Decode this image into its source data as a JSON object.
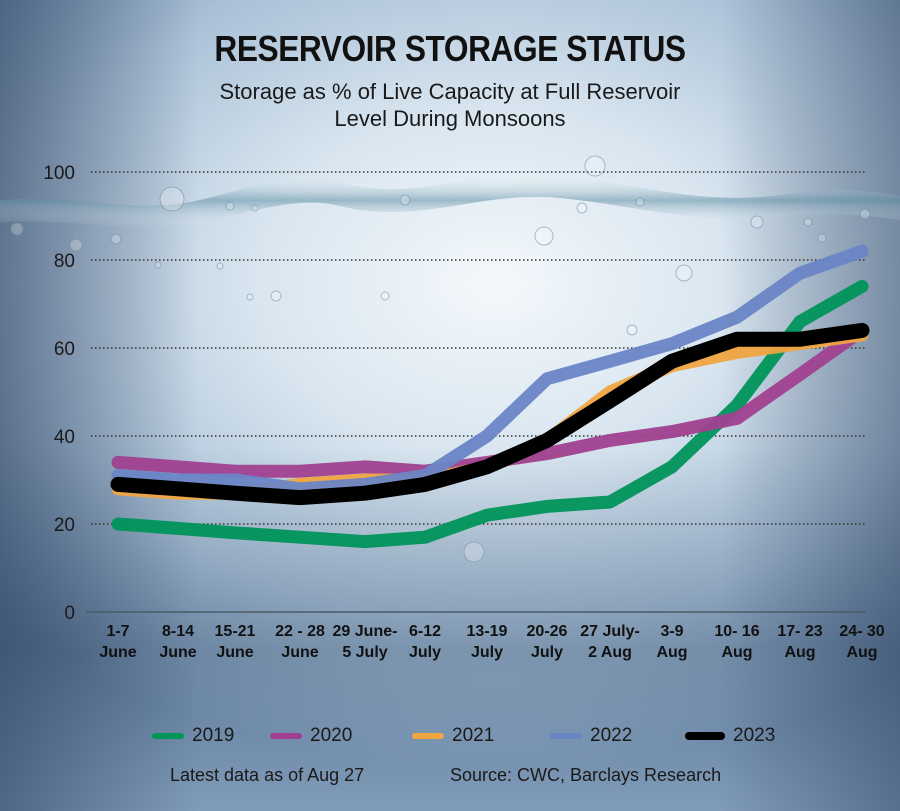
{
  "header": {
    "title": "RESERVOIR STORAGE STATUS",
    "subtitle_line1": "Storage as % of Live Capacity at Full Reservoir",
    "subtitle_line2": "Level During Monsoons"
  },
  "chart_data": {
    "type": "line",
    "title": "RESERVOIR STORAGE STATUS",
    "subtitle": "Storage as % of Live Capacity at Full Reservoir Level During Monsoons",
    "xlabel": "",
    "ylabel": "",
    "ylim": [
      0,
      100
    ],
    "yticks": [
      0,
      20,
      40,
      60,
      80,
      100
    ],
    "grid": true,
    "legend_position": "bottom",
    "categories": [
      [
        "1-7",
        "June"
      ],
      [
        "8-14",
        "June"
      ],
      [
        "15-21",
        "June"
      ],
      [
        "22 - 28",
        "June"
      ],
      [
        "29 June-",
        "5 July"
      ],
      [
        "6-12",
        "July"
      ],
      [
        "13-19",
        "July"
      ],
      [
        "20-26",
        "July"
      ],
      [
        "27 July-",
        "2 Aug"
      ],
      [
        "3-9",
        "Aug"
      ],
      [
        "10- 16",
        "Aug"
      ],
      [
        "17- 23",
        "Aug"
      ],
      [
        "24- 30",
        "Aug"
      ]
    ],
    "series": [
      {
        "name": "2019",
        "color": "#00945a",
        "values": [
          20,
          19,
          18,
          17,
          16,
          17,
          22,
          24,
          25,
          33,
          47,
          66,
          74
        ]
      },
      {
        "name": "2020",
        "color": "#a0408f",
        "values": [
          34,
          33,
          32,
          32,
          33,
          32,
          34,
          36,
          39,
          41,
          44,
          54,
          64
        ]
      },
      {
        "name": "2021",
        "color": "#f0a440",
        "values": [
          28,
          27,
          27,
          29,
          30,
          30,
          33,
          39,
          50,
          56,
          59,
          61,
          63
        ]
      },
      {
        "name": "2022",
        "color": "#6a85c6",
        "values": [
          31,
          30,
          30,
          28,
          29,
          31,
          40,
          53,
          57,
          61,
          67,
          77,
          82
        ]
      },
      {
        "name": "2023",
        "color": "#000000",
        "values": [
          29,
          28,
          27,
          26,
          27,
          29,
          33,
          39,
          48,
          57,
          62,
          62,
          64
        ]
      }
    ]
  },
  "footer": {
    "note": "Latest data as of Aug 27",
    "source": "Source: CWC, Barclays Research"
  }
}
